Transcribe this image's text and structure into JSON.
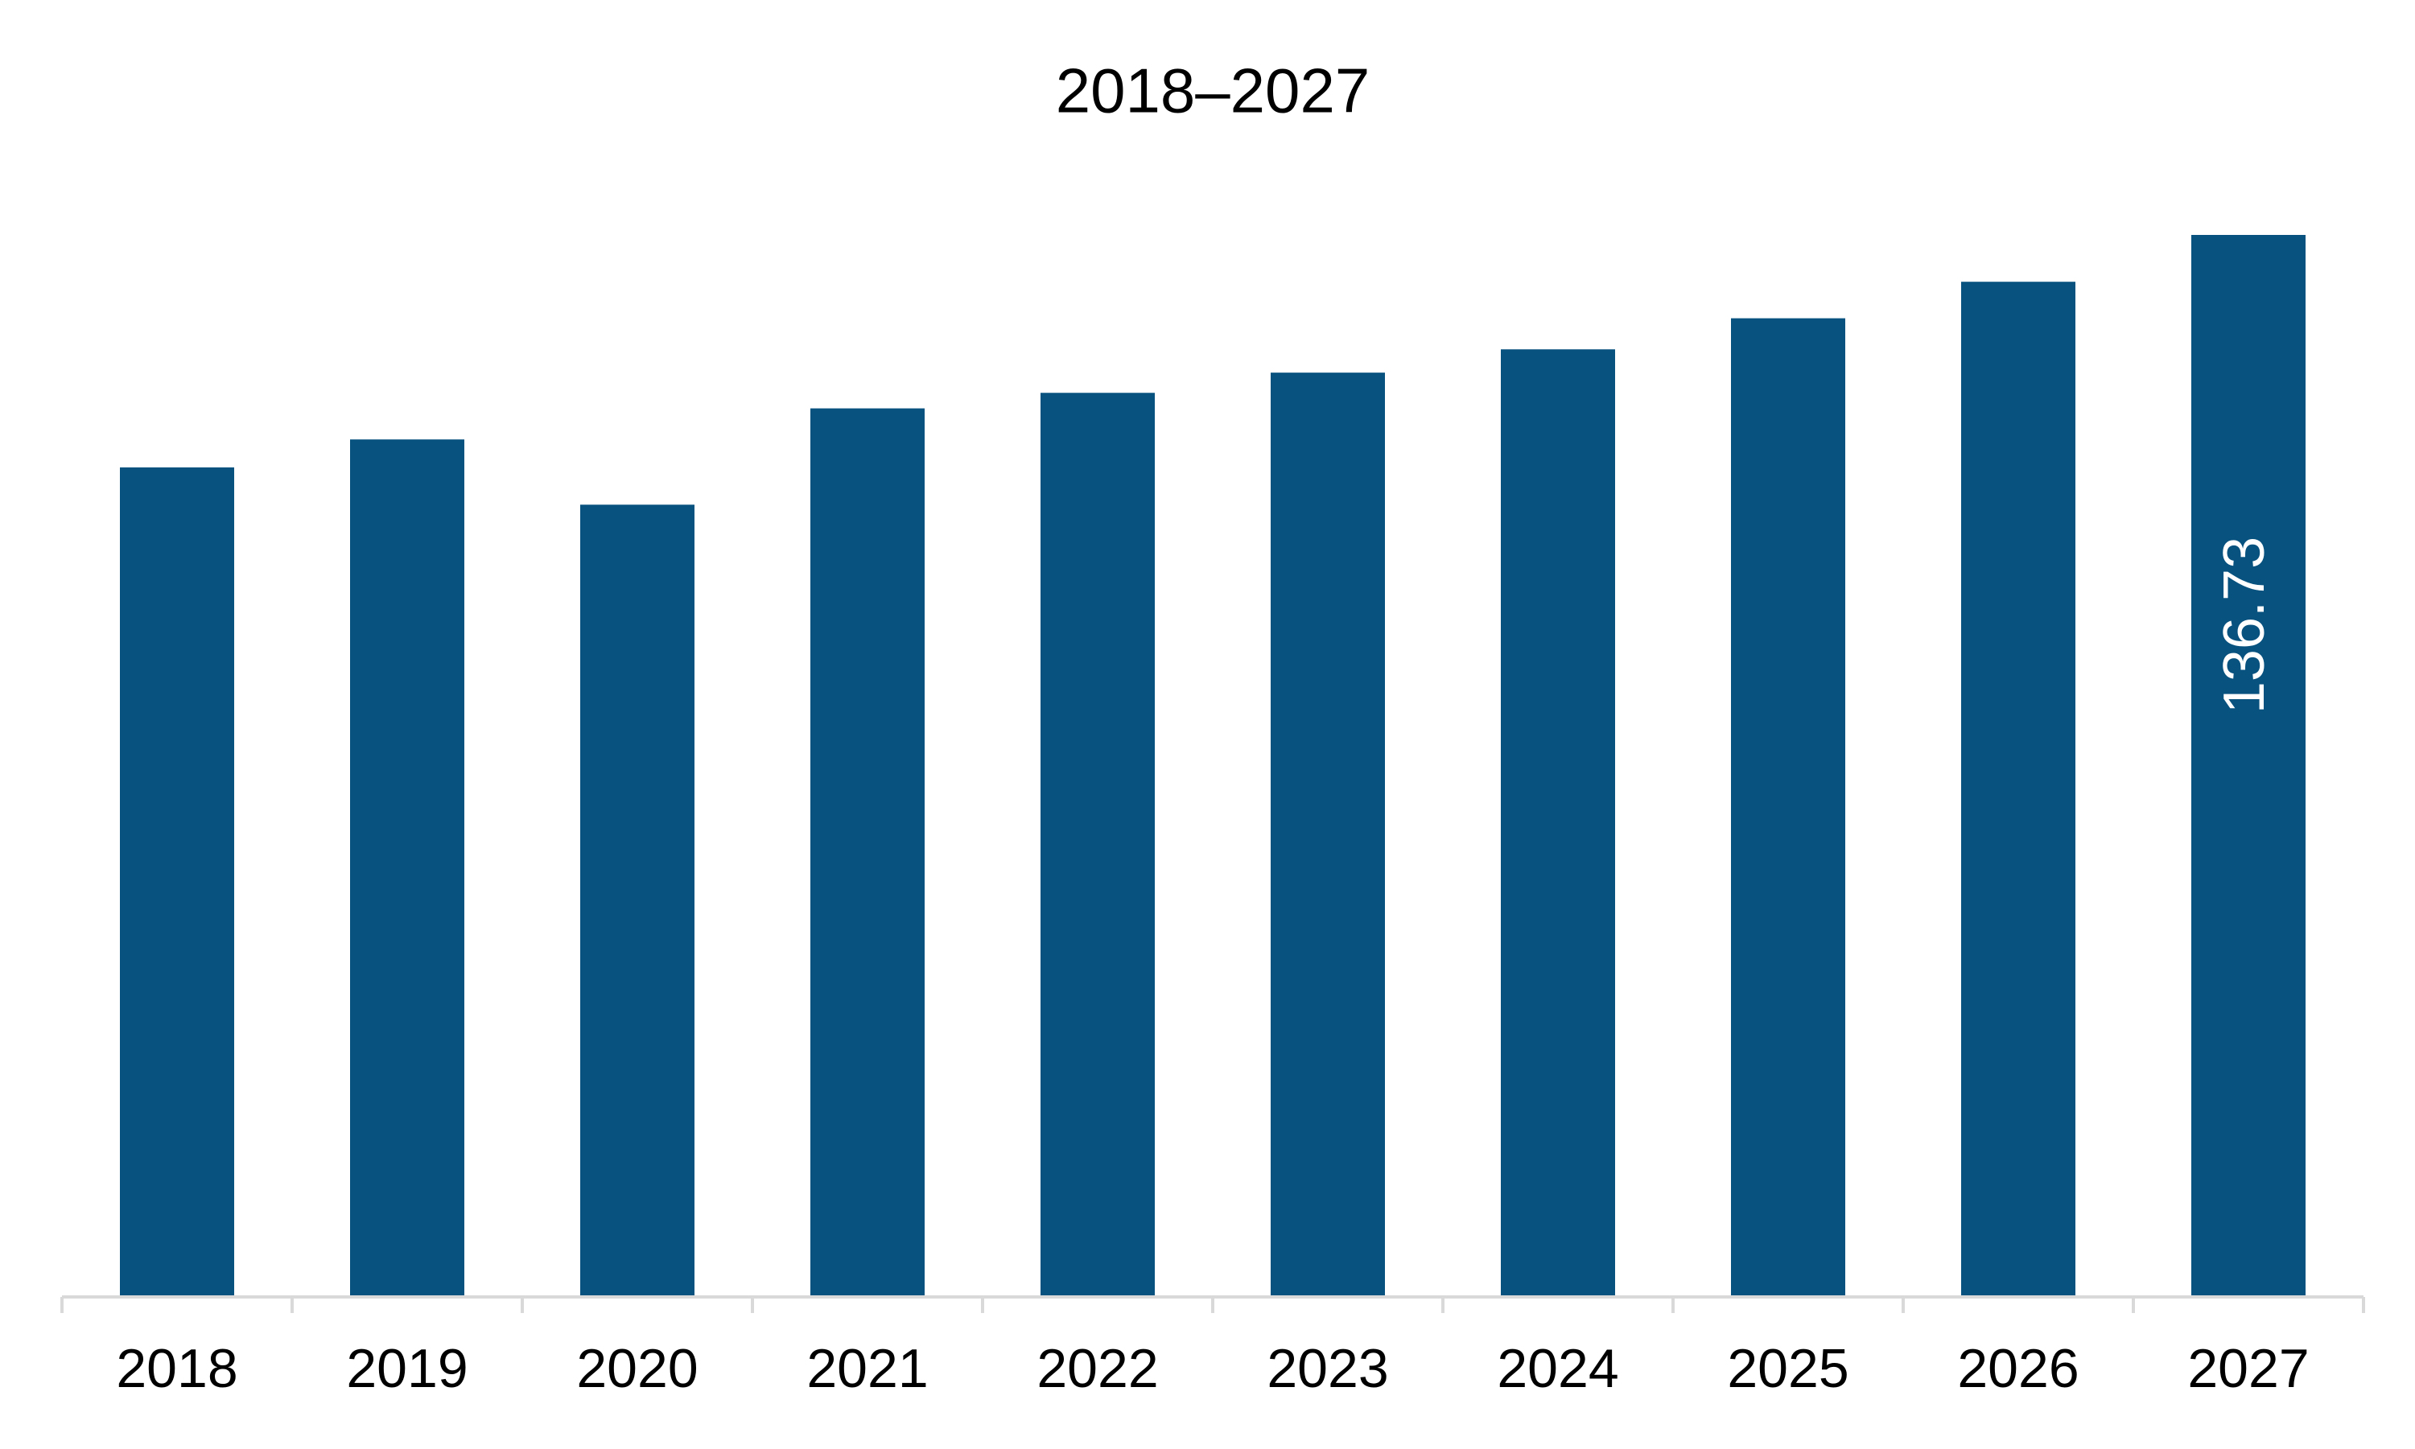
{
  "chart_data": {
    "type": "bar",
    "title": "2018–2027",
    "categories": [
      "2018",
      "2019",
      "2020",
      "2021",
      "2022",
      "2023",
      "2024",
      "2025",
      "2026",
      "2027"
    ],
    "values": [
      106.8,
      110.4,
      102.0,
      114.4,
      116.4,
      119.0,
      122.0,
      126.0,
      130.7,
      136.73
    ],
    "color": "#08527f",
    "data_label": "last"
  }
}
